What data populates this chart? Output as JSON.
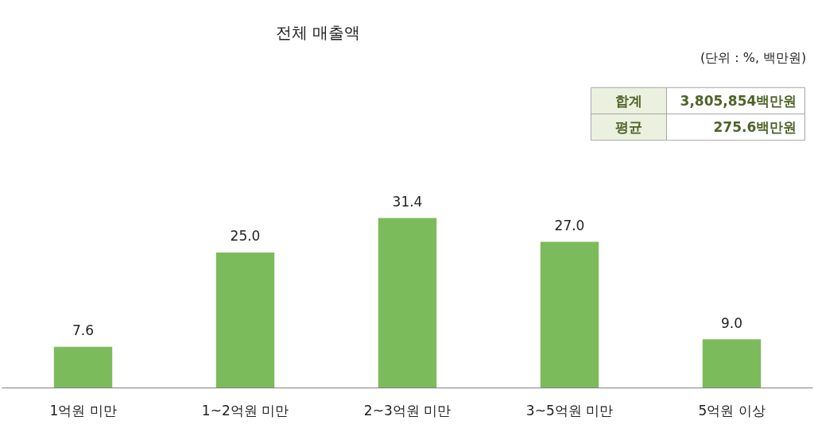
{
  "chart_data": {
    "type": "bar",
    "title": "전체 매출액",
    "categories": [
      "1억원 미만",
      "1~2억원 미만",
      "2~3억원 미만",
      "3~5억원 미만",
      "5억원 이상"
    ],
    "values": [
      7.6,
      25.0,
      31.4,
      27.0,
      9.0
    ],
    "value_labels": [
      "7.6",
      "25.0",
      "31.4",
      "27.0",
      "9.0"
    ],
    "color": "#7cbb5b",
    "annotations": [
      "(단위 : %, 백만원)",
      "합계 3,805,854백만원",
      "평균 275.6백만원"
    ],
    "grid": false
  }
}
